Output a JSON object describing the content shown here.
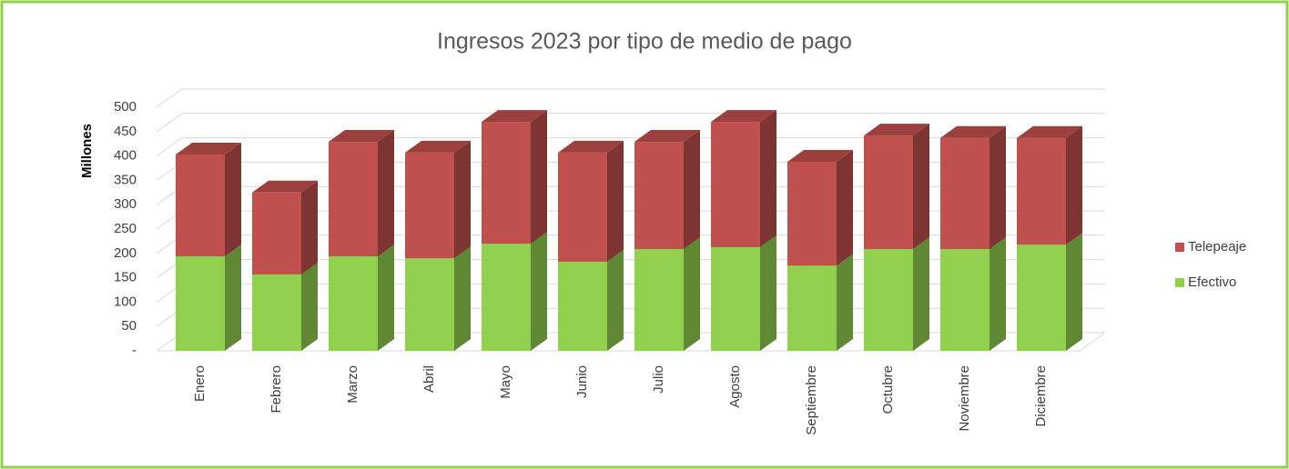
{
  "chart_data": {
    "type": "bar3d_stacked",
    "title": "Ingresos 2023 por tipo de medio de pago",
    "y_label": "Millones",
    "categories": [
      "Enero",
      "Febrero",
      "Marzo",
      "Abril",
      "Mayo",
      "Junio",
      "Julio",
      "Agosto",
      "Septiembre",
      "Octubre",
      "Noviembre",
      "Diciembre"
    ],
    "series": [
      {
        "name": "Efectivo",
        "color": "#92d050",
        "values": [
          194,
          157,
          194,
          190,
          220,
          183,
          209,
          213,
          175,
          209,
          209,
          218
        ]
      },
      {
        "name": "Telepeaje",
        "color": "#c0504d",
        "values": [
          209,
          168,
          235,
          217,
          250,
          224,
          220,
          257,
          213,
          233,
          228,
          219
        ]
      }
    ],
    "ylim": [
      0,
      500
    ],
    "yticks": [
      {
        "value": 0,
        "label": "-"
      },
      50,
      100,
      150,
      200,
      250,
      300,
      350,
      400,
      450,
      500
    ],
    "grid": true,
    "legend": "right"
  }
}
